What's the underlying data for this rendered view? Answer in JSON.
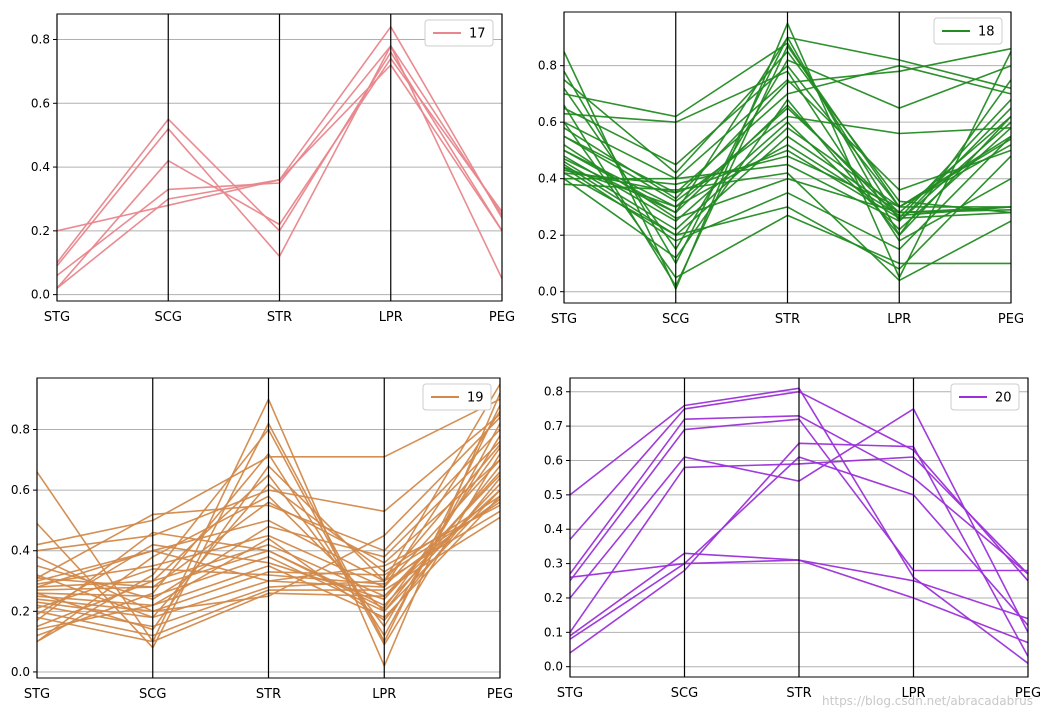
{
  "figure": {
    "watermark": "https://blog.csdn.net/abracadabrus"
  },
  "chart_data": [
    {
      "type": "parallel_coordinates",
      "legend": "17",
      "legend_position": "top-right",
      "color": "#e8868c",
      "axes": [
        "STG",
        "SCG",
        "STR",
        "LPR",
        "PEG"
      ],
      "ylim": [
        -0.02,
        0.88
      ],
      "yticks": [
        "0.0",
        "0.2",
        "0.4",
        "0.6",
        "0.8"
      ],
      "grid": true,
      "lines": [
        [
          0.1,
          0.55,
          0.2,
          0.76,
          0.2
        ],
        [
          0.02,
          0.3,
          0.36,
          0.84,
          0.24
        ],
        [
          0.06,
          0.33,
          0.35,
          0.78,
          0.05
        ],
        [
          0.02,
          0.42,
          0.22,
          0.74,
          0.26
        ],
        [
          0.2,
          0.28,
          0.36,
          0.72,
          0.2
        ],
        [
          0.09,
          0.52,
          0.12,
          0.78,
          0.25
        ]
      ]
    },
    {
      "type": "parallel_coordinates",
      "legend": "18",
      "legend_position": "top-right",
      "color": "#228b22",
      "axes": [
        "STG",
        "SCG",
        "STR",
        "LPR",
        "PEG"
      ],
      "ylim": [
        -0.04,
        0.99
      ],
      "yticks": [
        "0.0",
        "0.2",
        "0.4",
        "0.6",
        "0.8"
      ],
      "grid": true,
      "lines": [
        [
          0.85,
          0.01,
          0.95,
          0.05,
          0.85
        ],
        [
          0.78,
          0.1,
          0.9,
          0.2,
          0.75
        ],
        [
          0.7,
          0.62,
          0.88,
          0.25,
          0.6
        ],
        [
          0.65,
          0.45,
          0.8,
          0.3,
          0.55
        ],
        [
          0.6,
          0.4,
          0.75,
          0.36,
          0.5
        ],
        [
          0.55,
          0.35,
          0.7,
          0.8,
          0.7
        ],
        [
          0.5,
          0.3,
          0.65,
          0.28,
          0.62
        ],
        [
          0.48,
          0.25,
          0.6,
          0.22,
          0.58
        ],
        [
          0.46,
          0.22,
          0.58,
          0.3,
          0.3
        ],
        [
          0.45,
          0.2,
          0.55,
          0.28,
          0.29
        ],
        [
          0.44,
          0.3,
          0.52,
          0.27,
          0.3
        ],
        [
          0.43,
          0.35,
          0.5,
          0.26,
          0.28
        ],
        [
          0.42,
          0.38,
          0.48,
          0.3,
          0.52
        ],
        [
          0.4,
          0.4,
          0.45,
          0.25,
          0.65
        ],
        [
          0.38,
          0.36,
          0.42,
          0.04,
          0.25
        ],
        [
          0.6,
          0.05,
          0.27,
          0.1,
          0.1
        ],
        [
          0.72,
          0.15,
          0.82,
          0.65,
          0.8
        ],
        [
          0.5,
          0.28,
          0.9,
          0.82,
          0.72
        ],
        [
          0.55,
          0.32,
          0.62,
          0.56,
          0.58
        ],
        [
          0.44,
          0.18,
          0.35,
          0.15,
          0.55
        ],
        [
          0.42,
          0.2,
          0.3,
          0.08,
          0.48
        ],
        [
          0.63,
          0.6,
          0.78,
          0.18,
          0.4
        ],
        [
          0.75,
          0.42,
          0.85,
          0.32,
          0.28
        ],
        [
          0.4,
          0.12,
          0.68,
          0.2,
          0.62
        ],
        [
          0.47,
          0.28,
          0.66,
          0.26,
          0.68
        ],
        [
          0.58,
          0.33,
          0.74,
          0.78,
          0.86
        ],
        [
          0.52,
          0.26,
          0.4,
          0.28,
          0.3
        ],
        [
          0.66,
          0.02,
          0.87,
          0.3,
          0.54
        ]
      ]
    },
    {
      "type": "parallel_coordinates",
      "legend": "19",
      "legend_position": "top-right",
      "color": "#d2894a",
      "axes": [
        "STG",
        "SCG",
        "STR",
        "LPR",
        "PEG"
      ],
      "ylim": [
        -0.02,
        0.97
      ],
      "yticks": [
        "0.0",
        "0.2",
        "0.4",
        "0.6",
        "0.8"
      ],
      "grid": true,
      "lines": [
        [
          0.66,
          0.1,
          0.9,
          0.02,
          0.92
        ],
        [
          0.49,
          0.08,
          0.82,
          0.1,
          0.88
        ],
        [
          0.42,
          0.5,
          0.71,
          0.71,
          0.9
        ],
        [
          0.4,
          0.45,
          0.6,
          0.53,
          0.85
        ],
        [
          0.31,
          0.52,
          0.55,
          0.4,
          0.8
        ],
        [
          0.3,
          0.4,
          0.5,
          0.3,
          0.75
        ],
        [
          0.29,
          0.35,
          0.45,
          0.28,
          0.7
        ],
        [
          0.28,
          0.3,
          0.42,
          0.25,
          0.65
        ],
        [
          0.27,
          0.28,
          0.4,
          0.22,
          0.62
        ],
        [
          0.26,
          0.25,
          0.38,
          0.2,
          0.6
        ],
        [
          0.25,
          0.22,
          0.35,
          0.18,
          0.58
        ],
        [
          0.24,
          0.2,
          0.33,
          0.32,
          0.56
        ],
        [
          0.23,
          0.18,
          0.3,
          0.35,
          0.55
        ],
        [
          0.22,
          0.15,
          0.28,
          0.3,
          0.53
        ],
        [
          0.2,
          0.12,
          0.27,
          0.27,
          0.51
        ],
        [
          0.18,
          0.1,
          0.26,
          0.25,
          0.6
        ],
        [
          0.15,
          0.3,
          0.65,
          0.15,
          0.78
        ],
        [
          0.12,
          0.26,
          0.72,
          0.12,
          0.82
        ],
        [
          0.1,
          0.38,
          0.58,
          0.2,
          0.68
        ],
        [
          0.1,
          0.32,
          0.8,
          0.09,
          0.72
        ],
        [
          0.32,
          0.18,
          0.62,
          0.33,
          0.58
        ],
        [
          0.28,
          0.4,
          0.3,
          0.28,
          0.86
        ],
        [
          0.35,
          0.24,
          0.48,
          0.38,
          0.76
        ],
        [
          0.19,
          0.42,
          0.36,
          0.24,
          0.66
        ],
        [
          0.26,
          0.14,
          0.68,
          0.3,
          0.95
        ],
        [
          0.14,
          0.22,
          0.44,
          0.17,
          0.64
        ],
        [
          0.31,
          0.28,
          0.56,
          0.36,
          0.7
        ],
        [
          0.21,
          0.34,
          0.32,
          0.29,
          0.57
        ],
        [
          0.38,
          0.2,
          0.25,
          0.45,
          0.84
        ],
        [
          0.17,
          0.46,
          0.4,
          0.21,
          0.74
        ]
      ]
    },
    {
      "type": "parallel_coordinates",
      "legend": "20",
      "legend_position": "top-right",
      "color": "#9b30d9",
      "axes": [
        "STG",
        "SCG",
        "STR",
        "LPR",
        "PEG"
      ],
      "ylim": [
        -0.03,
        0.84
      ],
      "yticks": [
        "0.0",
        "0.1",
        "0.2",
        "0.3",
        "0.4",
        "0.5",
        "0.6",
        "0.7",
        "0.8"
      ],
      "grid": true,
      "lines": [
        [
          0.5,
          0.76,
          0.81,
          0.26,
          0.01
        ],
        [
          0.37,
          0.75,
          0.8,
          0.63,
          0.25
        ],
        [
          0.27,
          0.72,
          0.73,
          0.55,
          0.27
        ],
        [
          0.25,
          0.69,
          0.72,
          0.28,
          0.28
        ],
        [
          0.2,
          0.61,
          0.54,
          0.75,
          0.1
        ],
        [
          0.1,
          0.58,
          0.59,
          0.61,
          0.27
        ],
        [
          0.09,
          0.33,
          0.31,
          0.2,
          0.07
        ],
        [
          0.08,
          0.3,
          0.31,
          0.25,
          0.14
        ],
        [
          0.04,
          0.28,
          0.65,
          0.64,
          0.03
        ],
        [
          0.26,
          0.3,
          0.61,
          0.5,
          0.12
        ]
      ]
    }
  ]
}
